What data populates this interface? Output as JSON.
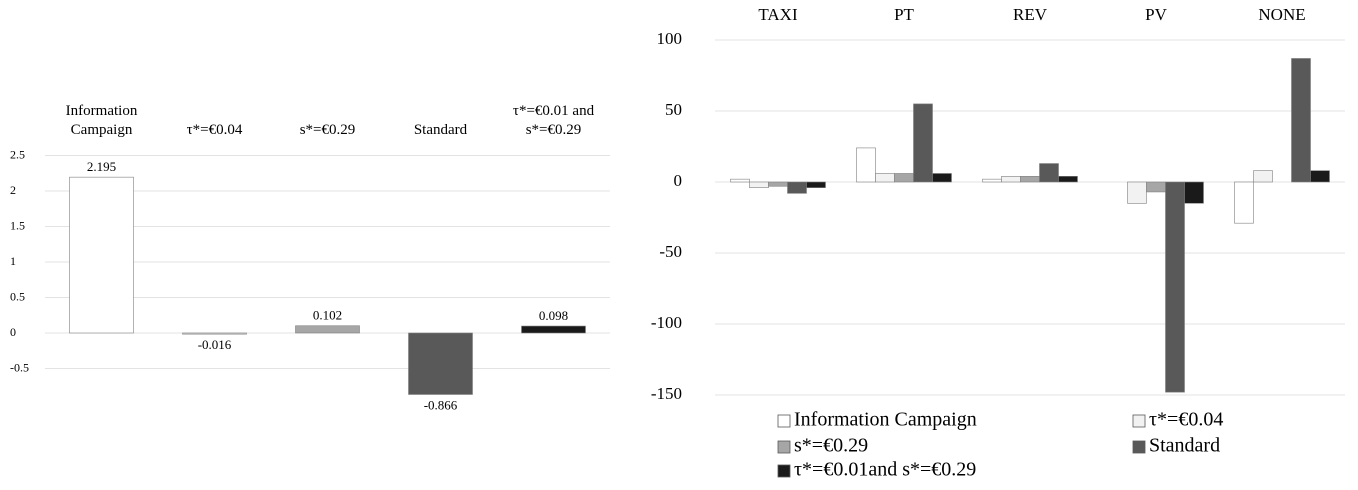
{
  "chart_data": [
    {
      "type": "bar",
      "categories": [
        "Information Campaign",
        "τ*=€0.04",
        "s*=€0.29",
        "Standard",
        "τ*=€0.01 and s*=€0.29"
      ],
      "values": [
        2.195,
        -0.016,
        0.102,
        -0.866,
        0.098
      ],
      "colors": [
        "#ffffff",
        "#d9d9d9",
        "#a6a6a6",
        "#595959",
        "#1a1a1a"
      ],
      "ylim": [
        -1.5,
        2.5
      ],
      "yticks": [
        2.5,
        2,
        1.5,
        1,
        0.5,
        0,
        -0.5
      ],
      "grid": true
    },
    {
      "type": "grouped_bar",
      "categories": [
        "TAXI",
        "PT",
        "REV",
        "PV",
        "NONE"
      ],
      "series": [
        {
          "name": "Information Campaign",
          "color": "#ffffff",
          "values": [
            2,
            24,
            2,
            0,
            -29
          ]
        },
        {
          "name": "τ*=€0.04",
          "color": "#f2f2f2",
          "values": [
            -4,
            6,
            4,
            -15,
            8
          ]
        },
        {
          "name": "s*=€0.29",
          "color": "#a6a6a6",
          "values": [
            -3,
            6,
            4,
            -7,
            0
          ]
        },
        {
          "name": "Standard",
          "color": "#595959",
          "values": [
            -8,
            55,
            13,
            -148,
            87
          ]
        },
        {
          "name": "τ*=€0.01and s*=€0.29",
          "color": "#1a1a1a",
          "values": [
            -4,
            6,
            4,
            -15,
            8
          ]
        }
      ],
      "ylim": [
        -150,
        100
      ],
      "yticks": [
        -150,
        -100,
        -50,
        0,
        50,
        100
      ],
      "grid": true
    }
  ]
}
